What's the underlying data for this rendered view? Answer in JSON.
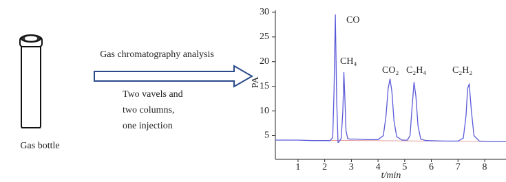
{
  "diagram": {
    "bottle_label": "Gas bottle",
    "arrow_label": "Gas chromatography analysis",
    "method_lines": [
      "Two vavels and",
      "two columns,",
      "one injection"
    ]
  },
  "chart_data": {
    "type": "line",
    "xlabel": "t/min",
    "ylabel": "PA",
    "x": [
      0.15,
      0.5,
      1.0,
      1.5,
      2.0,
      2.2,
      2.3,
      2.35,
      2.4,
      2.45,
      2.5,
      2.55,
      2.62,
      2.68,
      2.72,
      2.76,
      2.8,
      2.86,
      2.95,
      3.2,
      3.6,
      4.0,
      4.2,
      4.3,
      4.38,
      4.45,
      4.52,
      4.6,
      4.7,
      4.9,
      5.1,
      5.2,
      5.28,
      5.35,
      5.42,
      5.5,
      5.6,
      5.8,
      6.5,
      7.0,
      7.2,
      7.3,
      7.36,
      7.42,
      7.5,
      7.6,
      7.8,
      8.3,
      8.8
    ],
    "values": [
      4.1,
      4.1,
      4.1,
      4.0,
      4.0,
      4.0,
      4.6,
      14,
      29.5,
      12,
      3.6,
      3.8,
      4.5,
      10,
      17.8,
      12,
      6,
      4.4,
      4.3,
      4.3,
      4.2,
      4.2,
      5,
      9,
      14.5,
      16.5,
      14,
      8,
      4.8,
      4.1,
      4.1,
      5,
      11,
      15.8,
      13,
      7,
      4.3,
      4.0,
      3.9,
      3.9,
      4.5,
      9,
      14.5,
      15.5,
      10,
      5,
      3.9,
      3.8,
      3.8
    ],
    "color": "#5a5ad8",
    "annotations": [
      "CO",
      "CH₄",
      "CO₂",
      "C₂H₄",
      "C₂H₂"
    ],
    "xlim": [
      0.15,
      8.8
    ],
    "ylim": [
      0.2,
      30.4
    ],
    "xticks": [
      1,
      2,
      3,
      4,
      5,
      6,
      7,
      8
    ],
    "yticks": [
      5,
      10,
      15,
      20,
      25,
      30
    ]
  }
}
